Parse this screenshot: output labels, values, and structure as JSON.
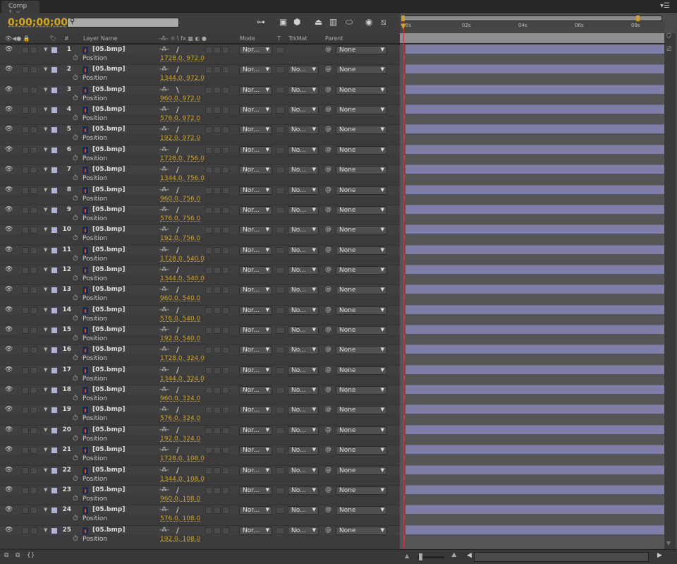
{
  "tab": {
    "title": "Comp 1",
    "close": "×"
  },
  "toolbar": {
    "timecode": "0;00;00;00",
    "search_placeholder": ""
  },
  "columns": {
    "layer_name": "Layer Name",
    "num": "#",
    "mode": "Mode",
    "t": "T",
    "trkmat": "TrkMat",
    "parent": "Parent",
    "switches": "-⁂- ☼ \\ fx ▦ ◐ ●"
  },
  "ruler": {
    "ticks": [
      "0s",
      "02s",
      "04s",
      "06s",
      "08s"
    ]
  },
  "colors": {
    "label": "#b0b3d8",
    "track_bar": "#7e7ea8",
    "timecode": "#d6a619",
    "cti": "#c23a3a"
  },
  "layers": [
    {
      "num": "1",
      "name": "[05.bmp]",
      "position": "1728.0, 972.0",
      "mode": "Nor...",
      "trkmat": "",
      "parent": "None",
      "motion": "/"
    },
    {
      "num": "2",
      "name": "[05.bmp]",
      "position": "1344.0, 972.0",
      "mode": "Nor...",
      "trkmat": "No...",
      "parent": "None",
      "motion": "/"
    },
    {
      "num": "3",
      "name": "[05.bmp]",
      "position": "960.0, 972.0",
      "mode": "Nor...",
      "trkmat": "No...",
      "parent": "None",
      "motion": "\\"
    },
    {
      "num": "4",
      "name": "[05.bmp]",
      "position": "576.0, 972.0",
      "mode": "Nor...",
      "trkmat": "No...",
      "parent": "None",
      "motion": "/"
    },
    {
      "num": "5",
      "name": "[05.bmp]",
      "position": "192.0, 972.0",
      "mode": "Nor...",
      "trkmat": "No...",
      "parent": "None",
      "motion": "/"
    },
    {
      "num": "6",
      "name": "[05.bmp]",
      "position": "1728.0, 756.0",
      "mode": "Nor...",
      "trkmat": "No...",
      "parent": "None",
      "motion": "/"
    },
    {
      "num": "7",
      "name": "[05.bmp]",
      "position": "1344.0, 756.0",
      "mode": "Nor...",
      "trkmat": "No...",
      "parent": "None",
      "motion": "/"
    },
    {
      "num": "8",
      "name": "[05.bmp]",
      "position": "960.0, 756.0",
      "mode": "Nor...",
      "trkmat": "No...",
      "parent": "None",
      "motion": "/"
    },
    {
      "num": "9",
      "name": "[05.bmp]",
      "position": "576.0, 756.0",
      "mode": "Nor...",
      "trkmat": "No...",
      "parent": "None",
      "motion": "/"
    },
    {
      "num": "10",
      "name": "[05.bmp]",
      "position": "192.0, 756.0",
      "mode": "Nor...",
      "trkmat": "No...",
      "parent": "None",
      "motion": "/"
    },
    {
      "num": "11",
      "name": "[05.bmp]",
      "position": "1728.0, 540.0",
      "mode": "Nor...",
      "trkmat": "No...",
      "parent": "None",
      "motion": "/"
    },
    {
      "num": "12",
      "name": "[05.bmp]",
      "position": "1344.0, 540.0",
      "mode": "Nor...",
      "trkmat": "No...",
      "parent": "None",
      "motion": "/"
    },
    {
      "num": "13",
      "name": "[05.bmp]",
      "position": "960.0, 540.0",
      "mode": "Nor...",
      "trkmat": "No...",
      "parent": "None",
      "motion": "/"
    },
    {
      "num": "14",
      "name": "[05.bmp]",
      "position": "576.0, 540.0",
      "mode": "Nor...",
      "trkmat": "No...",
      "parent": "None",
      "motion": "/"
    },
    {
      "num": "15",
      "name": "[05.bmp]",
      "position": "192.0, 540.0",
      "mode": "Nor...",
      "trkmat": "No...",
      "parent": "None",
      "motion": "/"
    },
    {
      "num": "16",
      "name": "[05.bmp]",
      "position": "1728.0, 324.0",
      "mode": "Nor...",
      "trkmat": "No...",
      "parent": "None",
      "motion": "/"
    },
    {
      "num": "17",
      "name": "[05.bmp]",
      "position": "1344.0, 324.0",
      "mode": "Nor...",
      "trkmat": "No...",
      "parent": "None",
      "motion": "/"
    },
    {
      "num": "18",
      "name": "[05.bmp]",
      "position": "960.0, 324.0",
      "mode": "Nor...",
      "trkmat": "No...",
      "parent": "None",
      "motion": "/"
    },
    {
      "num": "19",
      "name": "[05.bmp]",
      "position": "576.0, 324.0",
      "mode": "Nor...",
      "trkmat": "No...",
      "parent": "None",
      "motion": "/"
    },
    {
      "num": "20",
      "name": "[05.bmp]",
      "position": "192.0, 324.0",
      "mode": "Nor...",
      "trkmat": "No...",
      "parent": "None",
      "motion": "/"
    },
    {
      "num": "21",
      "name": "[05.bmp]",
      "position": "1728.0, 108.0",
      "mode": "Nor...",
      "trkmat": "No...",
      "parent": "None",
      "motion": "/"
    },
    {
      "num": "22",
      "name": "[05.bmp]",
      "position": "1344.0, 108.0",
      "mode": "Nor...",
      "trkmat": "No...",
      "parent": "None",
      "motion": "/"
    },
    {
      "num": "23",
      "name": "[05.bmp]",
      "position": "960.0, 108.0",
      "mode": "Nor...",
      "trkmat": "No...",
      "parent": "None",
      "motion": "/"
    },
    {
      "num": "24",
      "name": "[05.bmp]",
      "position": "576.0, 108.0",
      "mode": "Nor...",
      "trkmat": "No...",
      "parent": "None",
      "motion": "/"
    },
    {
      "num": "25",
      "name": "[05.bmp]",
      "position": "192.0, 108.0",
      "mode": "Nor...",
      "trkmat": "No...",
      "parent": "None",
      "motion": "/"
    }
  ],
  "property_label": "Position"
}
